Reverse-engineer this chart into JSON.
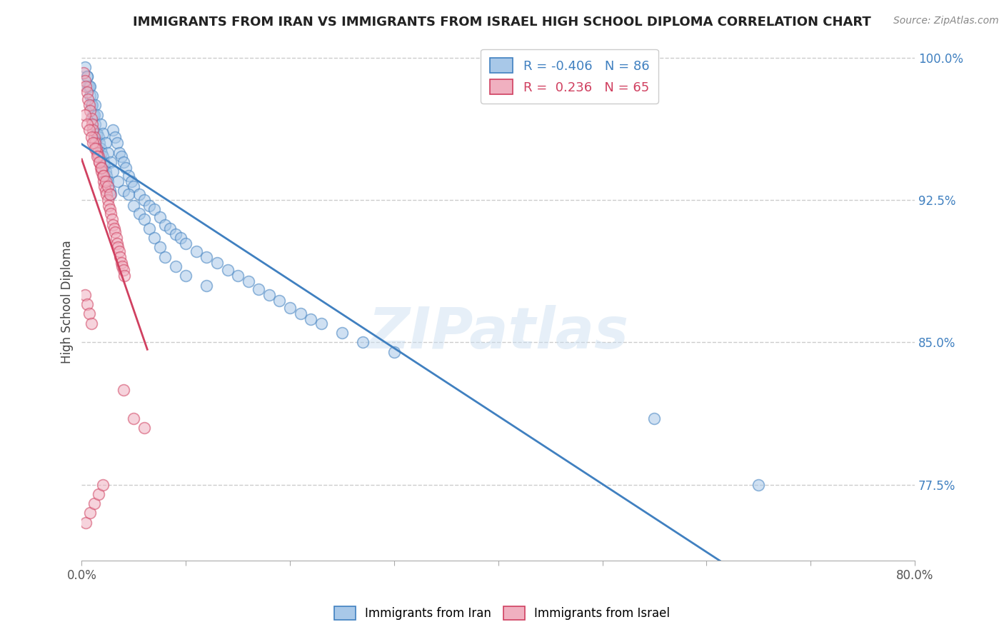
{
  "title": "IMMIGRANTS FROM IRAN VS IMMIGRANTS FROM ISRAEL HIGH SCHOOL DIPLOMA CORRELATION CHART",
  "source": "Source: ZipAtlas.com",
  "ylabel": "High School Diploma",
  "legend_label_blue": "Immigrants from Iran",
  "legend_label_pink": "Immigrants from Israel",
  "R_blue": -0.406,
  "N_blue": 86,
  "R_pink": 0.236,
  "N_pink": 65,
  "blue_color": "#a8c8e8",
  "pink_color": "#f0b0c0",
  "blue_line_color": "#4080c0",
  "pink_line_color": "#d04060",
  "xlim": [
    0.0,
    0.8
  ],
  "ylim": [
    0.735,
    1.008
  ],
  "x_ticks": [
    0.0,
    0.1,
    0.2,
    0.3,
    0.4,
    0.5,
    0.6,
    0.7,
    0.8
  ],
  "y_ticks_right": [
    1.0,
    0.925,
    0.85,
    0.775
  ],
  "y_tick_labels_right": [
    "100.0%",
    "92.5%",
    "85.0%",
    "77.5%"
  ],
  "watermark": "ZIPatlas",
  "iran_x": [
    0.003,
    0.005,
    0.006,
    0.007,
    0.008,
    0.009,
    0.01,
    0.011,
    0.012,
    0.013,
    0.014,
    0.015,
    0.016,
    0.017,
    0.018,
    0.019,
    0.02,
    0.021,
    0.022,
    0.023,
    0.024,
    0.025,
    0.027,
    0.028,
    0.03,
    0.032,
    0.034,
    0.036,
    0.038,
    0.04,
    0.042,
    0.045,
    0.048,
    0.05,
    0.055,
    0.06,
    0.065,
    0.07,
    0.075,
    0.08,
    0.085,
    0.09,
    0.095,
    0.1,
    0.11,
    0.12,
    0.13,
    0.14,
    0.15,
    0.16,
    0.17,
    0.18,
    0.19,
    0.2,
    0.21,
    0.22,
    0.23,
    0.25,
    0.27,
    0.3,
    0.005,
    0.008,
    0.01,
    0.013,
    0.015,
    0.018,
    0.02,
    0.023,
    0.025,
    0.028,
    0.03,
    0.035,
    0.04,
    0.045,
    0.05,
    0.055,
    0.06,
    0.065,
    0.07,
    0.075,
    0.08,
    0.09,
    0.1,
    0.12,
    0.55,
    0.65
  ],
  "iran_y": [
    0.995,
    0.99,
    0.985,
    0.985,
    0.98,
    0.975,
    0.975,
    0.97,
    0.97,
    0.965,
    0.96,
    0.96,
    0.958,
    0.955,
    0.952,
    0.95,
    0.948,
    0.945,
    0.943,
    0.94,
    0.938,
    0.935,
    0.93,
    0.928,
    0.962,
    0.958,
    0.955,
    0.95,
    0.948,
    0.945,
    0.942,
    0.938,
    0.935,
    0.932,
    0.928,
    0.925,
    0.922,
    0.92,
    0.916,
    0.912,
    0.91,
    0.907,
    0.905,
    0.902,
    0.898,
    0.895,
    0.892,
    0.888,
    0.885,
    0.882,
    0.878,
    0.875,
    0.872,
    0.868,
    0.865,
    0.862,
    0.86,
    0.855,
    0.85,
    0.845,
    0.99,
    0.985,
    0.98,
    0.975,
    0.97,
    0.965,
    0.96,
    0.955,
    0.95,
    0.945,
    0.94,
    0.935,
    0.93,
    0.928,
    0.922,
    0.918,
    0.915,
    0.91,
    0.905,
    0.9,
    0.895,
    0.89,
    0.885,
    0.88,
    0.81,
    0.775
  ],
  "israel_x": [
    0.002,
    0.003,
    0.004,
    0.005,
    0.006,
    0.007,
    0.008,
    0.009,
    0.01,
    0.011,
    0.012,
    0.013,
    0.014,
    0.015,
    0.016,
    0.017,
    0.018,
    0.019,
    0.02,
    0.021,
    0.022,
    0.023,
    0.024,
    0.025,
    0.026,
    0.027,
    0.028,
    0.029,
    0.03,
    0.031,
    0.032,
    0.033,
    0.034,
    0.035,
    0.036,
    0.037,
    0.038,
    0.039,
    0.04,
    0.041,
    0.003,
    0.005,
    0.007,
    0.009,
    0.011,
    0.013,
    0.015,
    0.017,
    0.019,
    0.021,
    0.023,
    0.025,
    0.027,
    0.003,
    0.005,
    0.007,
    0.009,
    0.04,
    0.05,
    0.06,
    0.004,
    0.008,
    0.012,
    0.016,
    0.02
  ],
  "israel_y": [
    0.992,
    0.988,
    0.985,
    0.982,
    0.978,
    0.975,
    0.972,
    0.968,
    0.965,
    0.962,
    0.958,
    0.955,
    0.952,
    0.95,
    0.948,
    0.945,
    0.942,
    0.94,
    0.938,
    0.935,
    0.932,
    0.93,
    0.928,
    0.925,
    0.922,
    0.92,
    0.918,
    0.915,
    0.912,
    0.91,
    0.908,
    0.905,
    0.902,
    0.9,
    0.898,
    0.895,
    0.892,
    0.89,
    0.888,
    0.885,
    0.97,
    0.965,
    0.962,
    0.958,
    0.955,
    0.952,
    0.948,
    0.945,
    0.942,
    0.938,
    0.935,
    0.932,
    0.928,
    0.875,
    0.87,
    0.865,
    0.86,
    0.825,
    0.81,
    0.805,
    0.755,
    0.76,
    0.765,
    0.77,
    0.775
  ]
}
